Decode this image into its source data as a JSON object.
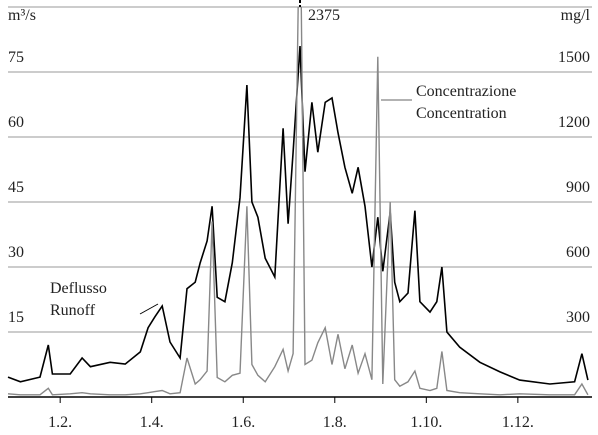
{
  "chart_data": {
    "type": "line",
    "y_label": "m³/s",
    "y2_label": "mg/l",
    "x": [
      0.86,
      1.13,
      1.56,
      1.74,
      1.83,
      2.22,
      2.48,
      2.66,
      3.09,
      3.42,
      3.75,
      3.92,
      4.07,
      4.23,
      4.4,
      4.62,
      4.77,
      4.95,
      5.06,
      5.21,
      5.32,
      5.43,
      5.6,
      5.76,
      5.93,
      6.08,
      6.19,
      6.32,
      6.48,
      6.69,
      6.87,
      6.98,
      7.09,
      7.24,
      7.35,
      7.5,
      7.63,
      7.79,
      7.94,
      8.07,
      8.22,
      8.38,
      8.51,
      8.66,
      8.81,
      8.94,
      9.05,
      9.21,
      9.31,
      9.42,
      9.6,
      9.75,
      9.86,
      10.08,
      10.23,
      10.34,
      10.45,
      10.73,
      11.17,
      11.61,
      12.04,
      12.7,
      13.24,
      13.4,
      13.53
    ],
    "xlim": [
      0.86,
      13.62
    ],
    "xticks": [
      {
        "value": 2,
        "label": "1.2."
      },
      {
        "value": 4,
        "label": "1.4."
      },
      {
        "value": 6,
        "label": "1.6."
      },
      {
        "value": 8,
        "label": "1.8."
      },
      {
        "value": 10,
        "label": "1.10."
      },
      {
        "value": 12,
        "label": "1.12."
      }
    ],
    "ylim": [
      0,
      90
    ],
    "yticks": [
      15,
      30,
      45,
      60,
      75
    ],
    "y2lim": [
      0,
      1800
    ],
    "y2ticks": [
      300,
      600,
      900,
      1200,
      1500
    ],
    "grid": true,
    "series": [
      {
        "name": [
          "Deflusso",
          "Runoff"
        ],
        "color": "#000000",
        "values": [
          4.6,
          3.5,
          4.6,
          12,
          5.3,
          5.3,
          9,
          7,
          8,
          7.6,
          10.4,
          16,
          18.5,
          21,
          12.7,
          9,
          25,
          26.5,
          31,
          36,
          44,
          23,
          22,
          31,
          46,
          72,
          45,
          41.5,
          32,
          27.7,
          62,
          40,
          56.5,
          81,
          52,
          68,
          56.5,
          68,
          69,
          61,
          53,
          47,
          53,
          44,
          30,
          41.5,
          29,
          42.7,
          26.5,
          22,
          24,
          43,
          22,
          19.6,
          22,
          30,
          15,
          11.5,
          8,
          5.8,
          3.9,
          3,
          3.5,
          10,
          3.9
        ]
      },
      {
        "name": [
          "Concentrazione",
          "Concentration"
        ],
        "color": "#888888",
        "axis": "y2",
        "values": [
          15,
          10,
          10,
          40,
          10,
          15,
          20,
          15,
          10,
          10,
          15,
          20,
          25,
          30,
          15,
          20,
          180,
          60,
          80,
          120,
          810,
          90,
          70,
          100,
          110,
          880,
          150,
          100,
          70,
          140,
          220,
          120,
          200,
          2375,
          150,
          170,
          250,
          320,
          150,
          290,
          130,
          240,
          110,
          200,
          80,
          1570,
          60,
          900,
          80,
          50,
          70,
          120,
          40,
          30,
          40,
          210,
          30,
          20,
          15,
          10,
          15,
          10,
          10,
          60,
          10
        ],
        "value_labels": [
          null,
          null,
          null,
          null,
          null,
          null,
          null,
          null,
          null,
          null,
          null,
          null,
          null,
          null,
          null,
          null,
          null,
          null,
          null,
          null,
          null,
          null,
          null,
          null,
          null,
          null,
          null,
          null,
          null,
          null,
          null,
          null,
          null,
          "2375",
          null,
          null,
          null,
          null,
          null,
          null,
          null,
          null,
          null,
          null,
          null,
          null,
          null,
          null,
          null,
          null,
          null,
          null,
          null,
          null,
          null,
          null,
          null,
          null,
          null,
          null,
          null,
          null,
          null,
          null,
          null
        ]
      }
    ]
  }
}
